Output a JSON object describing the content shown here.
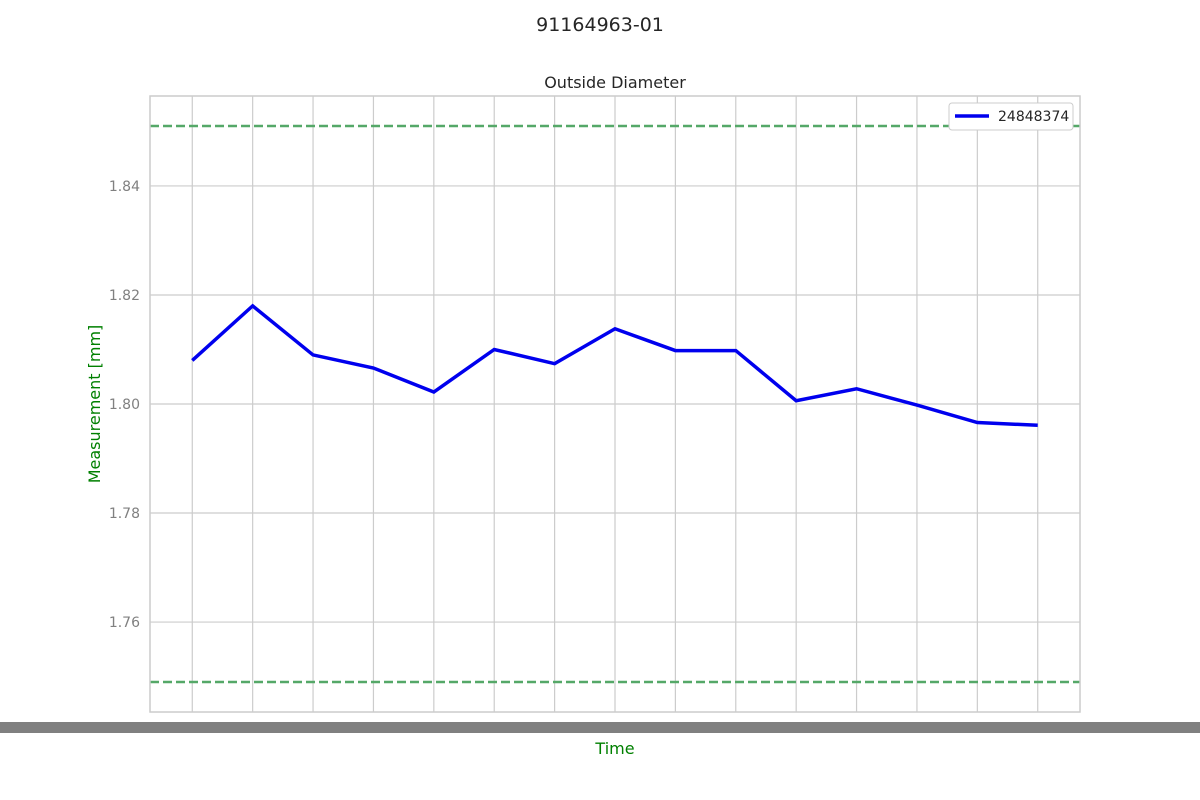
{
  "figure": {
    "suptitle": "91164963-01"
  },
  "chart_data": {
    "type": "line",
    "title": "Outside Diameter",
    "xlabel": "Time",
    "ylabel": "Measurement [mm]",
    "ylim": [
      1.7435,
      1.8565
    ],
    "yticks": [
      1.76,
      1.78,
      1.8,
      1.82,
      1.84
    ],
    "ytick_labels": [
      "1.76",
      "1.78",
      "1.80",
      "1.82",
      "1.84"
    ],
    "grid": true,
    "legend_position": "upper right",
    "x": [
      1,
      2,
      3,
      4,
      5,
      6,
      7,
      8,
      9,
      10,
      11,
      12,
      13,
      14,
      15
    ],
    "series": [
      {
        "name": "24848374",
        "color": "#0000ee",
        "values": [
          1.808,
          1.818,
          1.809,
          1.8066,
          1.8022,
          1.81,
          1.8074,
          1.8138,
          1.8098,
          1.8098,
          1.8006,
          1.8028,
          1.7998,
          1.7966,
          1.7961
        ]
      }
    ],
    "limits": [
      {
        "value": 1.851,
        "color": "#55a868",
        "style": "dashed"
      },
      {
        "value": 1.749,
        "color": "#55a868",
        "style": "dashed"
      }
    ]
  }
}
